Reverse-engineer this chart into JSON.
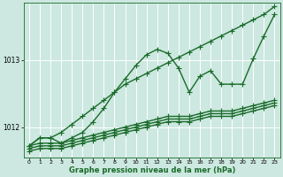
{
  "xlabel": "Graphe pression niveau de la mer (hPa)",
  "bg_color": "#cce8e0",
  "grid_color": "#ffffff",
  "line_color": "#1a6b2a",
  "markersize": 2.5,
  "linewidth": 1.0,
  "ylim": [
    1011.55,
    1013.85
  ],
  "xlim": [
    -0.5,
    23.5
  ],
  "yticks": [
    1012,
    1013
  ],
  "xticks": [
    0,
    1,
    2,
    3,
    4,
    5,
    6,
    7,
    8,
    9,
    10,
    11,
    12,
    13,
    14,
    15,
    16,
    17,
    18,
    19,
    20,
    21,
    22,
    23
  ],
  "series_peaked": [
    1011.72,
    1011.84,
    1011.84,
    1011.76,
    1011.84,
    1011.92,
    1012.08,
    1012.28,
    1012.52,
    1012.72,
    1012.92,
    1013.08,
    1013.16,
    1013.1,
    1012.88,
    1012.52,
    1012.76,
    1012.84,
    1012.64,
    1012.64,
    1012.64,
    1013.02,
    1013.36,
    1013.68
  ],
  "series_diagonal": [
    1011.72,
    1011.84,
    1011.84,
    1011.92,
    1012.04,
    1012.16,
    1012.28,
    1012.4,
    1012.52,
    1012.64,
    1012.72,
    1012.8,
    1012.88,
    1012.96,
    1013.04,
    1013.12,
    1013.2,
    1013.28,
    1013.36,
    1013.44,
    1013.52,
    1013.6,
    1013.68,
    1013.8
  ],
  "series_flat1": [
    1011.72,
    1011.76,
    1011.76,
    1011.76,
    1011.8,
    1011.84,
    1011.88,
    1011.92,
    1011.96,
    1012.0,
    1012.04,
    1012.08,
    1012.12,
    1012.16,
    1012.16,
    1012.16,
    1012.2,
    1012.24,
    1012.24,
    1012.24,
    1012.28,
    1012.32,
    1012.36,
    1012.4
  ],
  "series_flat2": [
    1011.68,
    1011.72,
    1011.72,
    1011.72,
    1011.76,
    1011.8,
    1011.84,
    1011.88,
    1011.92,
    1011.96,
    1012.0,
    1012.04,
    1012.08,
    1012.12,
    1012.12,
    1012.12,
    1012.16,
    1012.2,
    1012.2,
    1012.2,
    1012.24,
    1012.28,
    1012.32,
    1012.36
  ],
  "series_flat3": [
    1011.64,
    1011.68,
    1011.68,
    1011.68,
    1011.72,
    1011.76,
    1011.8,
    1011.84,
    1011.88,
    1011.92,
    1011.96,
    1012.0,
    1012.04,
    1012.08,
    1012.08,
    1012.08,
    1012.12,
    1012.16,
    1012.16,
    1012.16,
    1012.2,
    1012.24,
    1012.28,
    1012.32
  ]
}
